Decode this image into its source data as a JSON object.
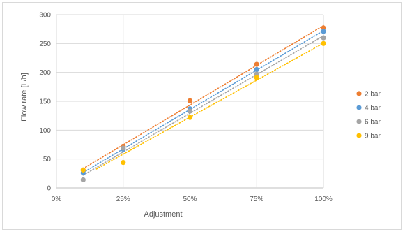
{
  "chart_data": {
    "type": "scatter",
    "title": "",
    "xlabel": "Adjustment",
    "ylabel": "Flow rate [L/h]",
    "xlim": [
      0,
      100
    ],
    "ylim": [
      0,
      300
    ],
    "x_ticks": [
      0,
      25,
      50,
      75,
      100
    ],
    "x_tick_labels": [
      "0%",
      "25%",
      "50%",
      "75%",
      "100%"
    ],
    "y_ticks": [
      0,
      50,
      100,
      150,
      200,
      250,
      300
    ],
    "y_tick_labels": [
      "0",
      "50",
      "100",
      "150",
      "200",
      "250",
      "300"
    ],
    "grid": true,
    "legend_position": "right",
    "trendlines": "linear, dotted",
    "series": [
      {
        "name": "2 bar",
        "color": "#ED7D31",
        "x": [
          10,
          25,
          50,
          75,
          100
        ],
        "y": [
          31,
          72,
          151,
          214,
          277
        ]
      },
      {
        "name": "4 bar",
        "color": "#5B9BD5",
        "x": [
          10,
          25,
          50,
          75,
          100
        ],
        "y": [
          26,
          67,
          137,
          205,
          271
        ]
      },
      {
        "name": "6 bar",
        "color": "#A5A5A5",
        "x": [
          10,
          25,
          50,
          75,
          100
        ],
        "y": [
          14,
          69,
          133,
          197,
          260
        ]
      },
      {
        "name": "9 bar",
        "color": "#FFC000",
        "x": [
          10,
          25,
          50,
          75,
          100
        ],
        "y": [
          31,
          44,
          122,
          191,
          250
        ],
        "trend_start_x": 15
      }
    ]
  }
}
